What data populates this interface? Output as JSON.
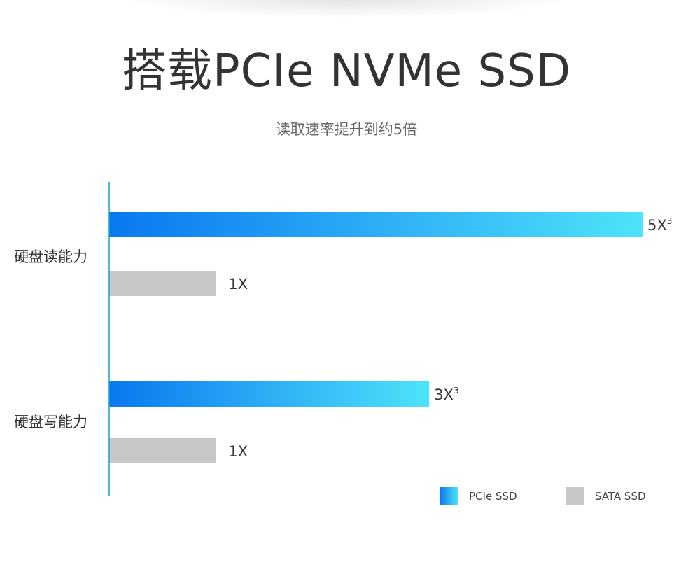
{
  "header": {
    "title": "搭载PCIe NVMe SSD",
    "subtitle": "读取速率提升到约5倍"
  },
  "colors": {
    "pcie_start": "#0a78f0",
    "pcie_end": "#4ee3fa",
    "sata": "#c8c8c8",
    "axis": "#1aa0c8"
  },
  "chart_data": {
    "type": "bar",
    "orientation": "horizontal",
    "categories": [
      "硬盘读能力",
      "硬盘写能力"
    ],
    "series": [
      {
        "name": "PCIe SSD",
        "values": [
          5,
          3
        ],
        "labels": [
          "5X",
          "3X"
        ],
        "label_superscript": "3"
      },
      {
        "name": "SATA SSD",
        "values": [
          1,
          1
        ],
        "labels": [
          "1X",
          "1X"
        ]
      }
    ],
    "xlim": [
      0,
      5
    ],
    "grid": false,
    "legend_position": "bottom-right"
  },
  "legend": [
    {
      "name": "PCIe SSD"
    },
    {
      "name": "SATA SSD"
    }
  ]
}
